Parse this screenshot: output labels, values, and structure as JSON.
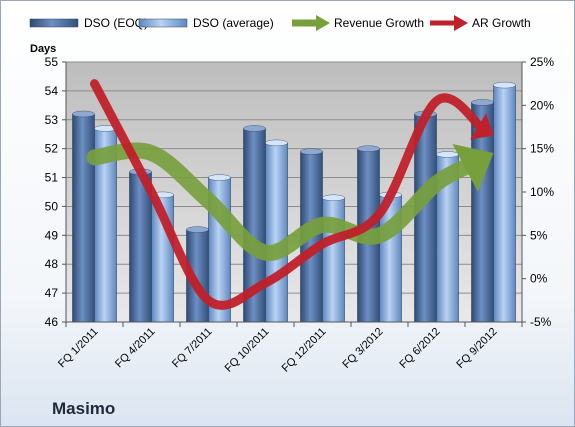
{
  "company": "Masimo",
  "chart_data": {
    "type": "bar",
    "categories": [
      "FQ 1/2011",
      "FQ 4/2011",
      "FQ 7/2011",
      "FQ 10/2011",
      "FQ 12/2011",
      "FQ 3/2012",
      "FQ 6/2012",
      "FQ 9/2012"
    ],
    "series": [
      {
        "name": "DSO (EOQ)",
        "kind": "bar",
        "axis": "left",
        "color": "#4f6f9f",
        "values": [
          53.2,
          51.2,
          49.2,
          52.7,
          51.9,
          52.0,
          53.2,
          53.6
        ]
      },
      {
        "name": "DSO (average)",
        "kind": "bar",
        "axis": "left",
        "color": "#8fb4e3",
        "values": [
          52.7,
          50.4,
          51.0,
          52.2,
          50.3,
          50.4,
          51.8,
          54.2
        ]
      },
      {
        "name": "Revenue Growth",
        "kind": "line",
        "axis": "right",
        "color": "#77a03d",
        "values": [
          14.0,
          14.5,
          9.0,
          3.0,
          6.2,
          5.0,
          11.0,
          14.5
        ]
      },
      {
        "name": "AR Growth",
        "kind": "line",
        "axis": "right",
        "color": "#c0202a",
        "values": [
          22.5,
          10.0,
          -2.5,
          -0.5,
          4.0,
          7.5,
          20.5,
          16.5
        ]
      }
    ],
    "ylabel": "Days",
    "ylim": [
      46,
      55
    ],
    "yticks": [
      "46",
      "47",
      "48",
      "49",
      "50",
      "51",
      "52",
      "53",
      "54",
      "55"
    ],
    "y2lim": [
      -5,
      25
    ],
    "y2ticks": [
      "-5%",
      "0%",
      "5%",
      "10%",
      "15%",
      "20%",
      "25%"
    ],
    "grid": true,
    "legend_position": "top"
  }
}
